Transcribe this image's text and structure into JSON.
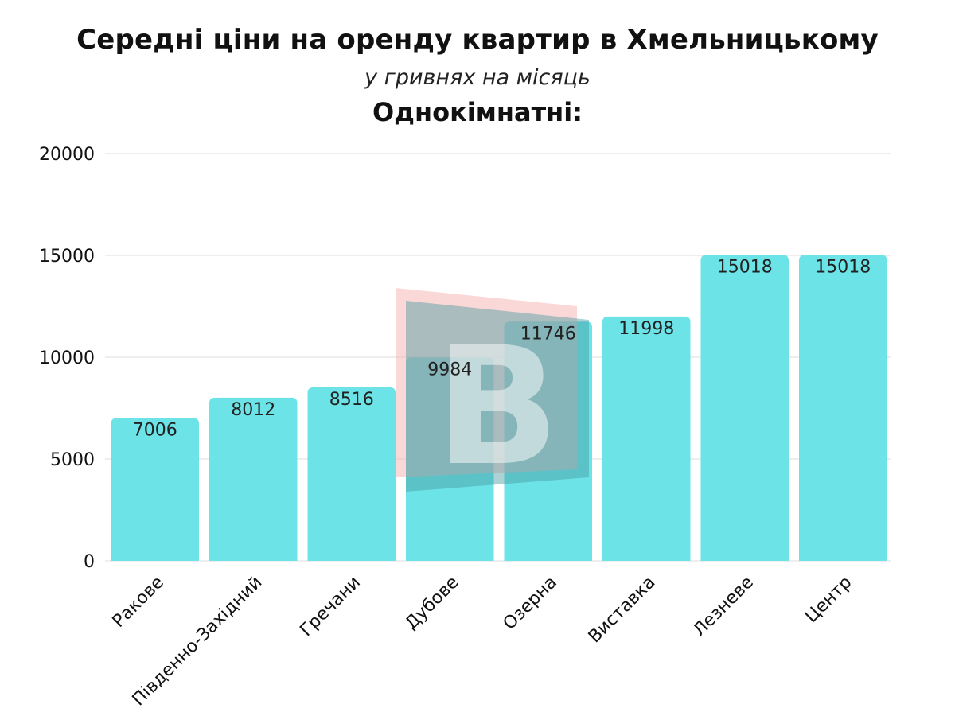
{
  "header": {
    "title": "Середні ціни на оренду квартир в Хмельницькому",
    "subtitle": "у гривнях на місяць",
    "section": "Однокімнатні:"
  },
  "colors": {
    "bar": "#6be3e7",
    "grid": "#dddddd",
    "text": "#111111",
    "watermark_back": "#f6b8b8",
    "watermark_front": "#4a9b9f"
  },
  "watermark": {
    "icon": "letter-b-logo",
    "text": "B"
  },
  "chart_data": {
    "type": "bar",
    "categories": [
      "Ракове",
      "Південно-Західний",
      "Гречани",
      "Дубове",
      "Озерна",
      "Виставка",
      "Лезневе",
      "Центр"
    ],
    "values": [
      7006,
      8012,
      8516,
      9984,
      11746,
      11998,
      15018,
      15018
    ],
    "ylim": [
      0,
      20000
    ],
    "yticks": [
      0,
      5000,
      10000,
      15000,
      20000
    ],
    "data_labels": true,
    "grid": true,
    "legend": "none"
  }
}
